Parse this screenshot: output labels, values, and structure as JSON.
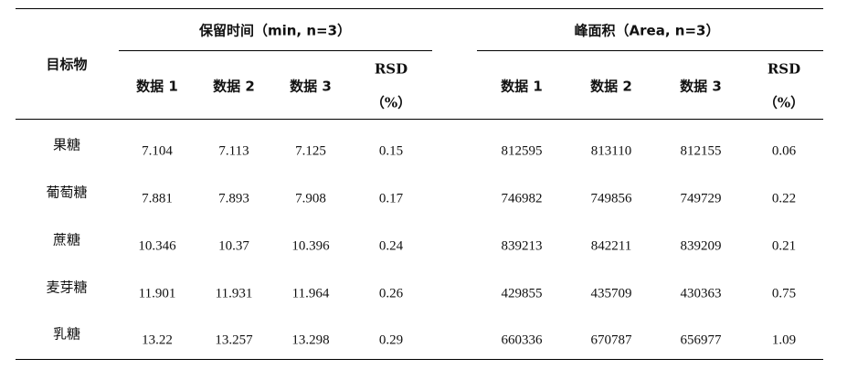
{
  "table": {
    "target_header": "目标物",
    "group1_header": "保留时间（min, n=3）",
    "group2_header": "峰面积（Area, n=3）",
    "sub_headers": {
      "data1": "数据 1",
      "data2": "数据 2",
      "data3": "数据 3",
      "rsd": "RSD",
      "rsd_unit": "（%）"
    },
    "rows": [
      {
        "name": "果糖",
        "rt1": "7.104",
        "rt2": "7.113",
        "rt3": "7.125",
        "rt_rsd": "0.15",
        "a1": "812595",
        "a2": "813110",
        "a3": "812155",
        "a_rsd": "0.06"
      },
      {
        "name": "葡萄糖",
        "rt1": "7.881",
        "rt2": "7.893",
        "rt3": "7.908",
        "rt_rsd": "0.17",
        "a1": "746982",
        "a2": "749856",
        "a3": "749729",
        "a_rsd": "0.22"
      },
      {
        "name": "蔗糖",
        "rt1": "10.346",
        "rt2": "10.37",
        "rt3": "10.396",
        "rt_rsd": "0.24",
        "a1": "839213",
        "a2": "842211",
        "a3": "839209",
        "a_rsd": "0.21"
      },
      {
        "name": "麦芽糖",
        "rt1": "11.901",
        "rt2": "11.931",
        "rt3": "11.964",
        "rt_rsd": "0.26",
        "a1": "429855",
        "a2": "435709",
        "a3": "430363",
        "a_rsd": "0.75"
      },
      {
        "name": "乳糖",
        "rt1": "13.22",
        "rt2": "13.257",
        "rt3": "13.298",
        "rt_rsd": "0.29",
        "a1": "660336",
        "a2": "670787",
        "a3": "656977",
        "a_rsd": "1.09"
      }
    ]
  }
}
